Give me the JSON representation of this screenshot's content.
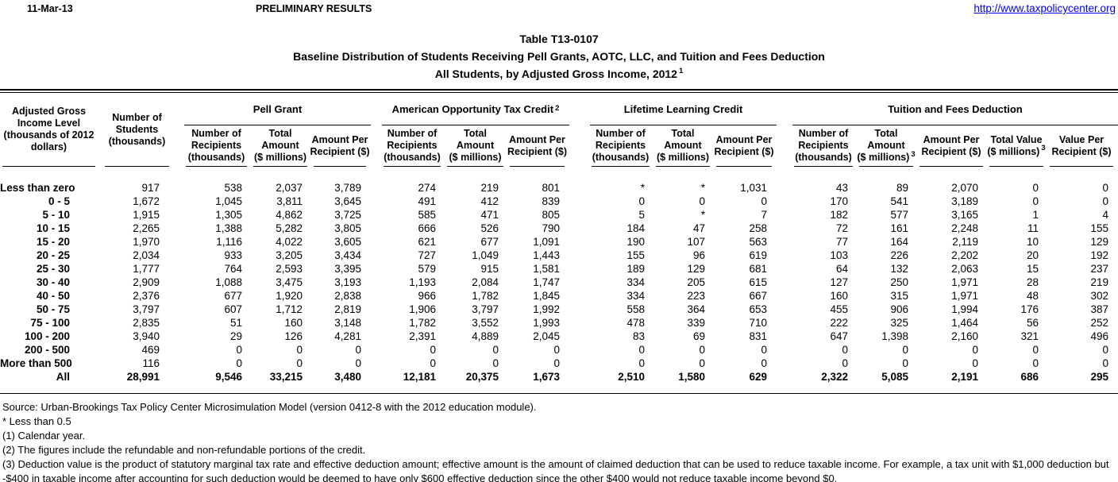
{
  "page": {
    "date": "11-Mar-13",
    "status": "PRELIMINARY RESULTS",
    "link": "http://www.taxpolicycenter.org"
  },
  "title": {
    "line1": "Table T13-0107",
    "line2": "Baseline Distribution of Students Receiving Pell Grants, AOTC, LLC, and Tuition and Fees Deduction",
    "line3": "All Students, by Adjusted Gross Income, 2012",
    "line3_sup": "1"
  },
  "table": {
    "row_header": {
      "lines": [
        "Adjusted Gross",
        "Income Level",
        "(thousands of 2012",
        "dollars)"
      ]
    },
    "students_header": {
      "lines": [
        "Number of",
        "Students",
        "(thousands)"
      ]
    },
    "groups": [
      {
        "label": "Pell Grant",
        "sup": "",
        "columns": [
          {
            "lines": [
              "Number of",
              "Recipients",
              "(thousands)"
            ],
            "sup": ""
          },
          {
            "lines": [
              "Total",
              "Amount",
              "($ millions)"
            ],
            "sup": ""
          },
          {
            "lines": [
              "Amount Per",
              "Recipient ($)"
            ],
            "sup": ""
          }
        ]
      },
      {
        "label": "American Opportunity Tax Credit",
        "sup": "2",
        "columns": [
          {
            "lines": [
              "Number of",
              "Recipients",
              "(thousands)"
            ],
            "sup": ""
          },
          {
            "lines": [
              "Total",
              "Amount",
              "($ millions)"
            ],
            "sup": ""
          },
          {
            "lines": [
              "Amount Per",
              "Recipient ($)"
            ],
            "sup": ""
          }
        ]
      },
      {
        "label": "Lifetime Learning Credit",
        "sup": "",
        "columns": [
          {
            "lines": [
              "Number of",
              "Recipients",
              "(thousands)"
            ],
            "sup": ""
          },
          {
            "lines": [
              "Total",
              "Amount",
              "($ millions)"
            ],
            "sup": ""
          },
          {
            "lines": [
              "Amount Per",
              "Recipient ($)"
            ],
            "sup": ""
          }
        ]
      },
      {
        "label": "Tuition and Fees Deduction",
        "sup": "",
        "columns": [
          {
            "lines": [
              "Number of",
              "Recipients",
              "(thousands)"
            ],
            "sup": ""
          },
          {
            "lines": [
              "Total",
              "Amount",
              "($ millions)"
            ],
            "sup": "3"
          },
          {
            "lines": [
              "Amount Per",
              "Recipient ($)"
            ],
            "sup": ""
          },
          {
            "lines": [
              "Total Value",
              "($ millions)"
            ],
            "sup": "3"
          },
          {
            "lines": [
              "Value Per",
              "Recipient ($)"
            ],
            "sup": ""
          }
        ]
      }
    ],
    "column_keys": [
      "students",
      "pell-recipients",
      "pell-total",
      "pell-per-recipient",
      "aotc-recipients",
      "aotc-total",
      "aotc-per-recipient",
      "llc-recipients",
      "llc-total",
      "llc-per-recipient",
      "tfd-recipients",
      "tfd-total",
      "tfd-per-recipient",
      "tfd-total-value",
      "tfd-value-per-recipient"
    ],
    "rows": [
      {
        "label": "Less than zero",
        "bold": false,
        "values": [
          "917",
          "538",
          "2,037",
          "3,789",
          "274",
          "219",
          "801",
          "*",
          "*",
          "1,031",
          "43",
          "89",
          "2,070",
          "0",
          "0"
        ]
      },
      {
        "label": "0 - 5",
        "bold": false,
        "values": [
          "1,672",
          "1,045",
          "3,811",
          "3,645",
          "491",
          "412",
          "839",
          "0",
          "0",
          "0",
          "170",
          "541",
          "3,189",
          "0",
          "0"
        ]
      },
      {
        "label": "5 - 10",
        "bold": false,
        "values": [
          "1,915",
          "1,305",
          "4,862",
          "3,725",
          "585",
          "471",
          "805",
          "5",
          "*",
          "7",
          "182",
          "577",
          "3,165",
          "1",
          "4"
        ]
      },
      {
        "label": "10 - 15",
        "bold": false,
        "values": [
          "2,265",
          "1,388",
          "5,282",
          "3,805",
          "666",
          "526",
          "790",
          "184",
          "47",
          "258",
          "72",
          "161",
          "2,248",
          "11",
          "155"
        ]
      },
      {
        "label": "15 - 20",
        "bold": false,
        "values": [
          "1,970",
          "1,116",
          "4,022",
          "3,605",
          "621",
          "677",
          "1,091",
          "190",
          "107",
          "563",
          "77",
          "164",
          "2,119",
          "10",
          "129"
        ]
      },
      {
        "label": "20 - 25",
        "bold": false,
        "values": [
          "2,034",
          "933",
          "3,205",
          "3,434",
          "727",
          "1,049",
          "1,443",
          "155",
          "96",
          "619",
          "103",
          "226",
          "2,202",
          "20",
          "192"
        ]
      },
      {
        "label": "25 - 30",
        "bold": false,
        "values": [
          "1,777",
          "764",
          "2,593",
          "3,395",
          "579",
          "915",
          "1,581",
          "189",
          "129",
          "681",
          "64",
          "132",
          "2,063",
          "15",
          "237"
        ]
      },
      {
        "label": "30 - 40",
        "bold": false,
        "values": [
          "2,909",
          "1,088",
          "3,475",
          "3,193",
          "1,193",
          "2,084",
          "1,747",
          "334",
          "205",
          "615",
          "127",
          "250",
          "1,971",
          "28",
          "219"
        ]
      },
      {
        "label": "40 - 50",
        "bold": false,
        "values": [
          "2,376",
          "677",
          "1,920",
          "2,838",
          "966",
          "1,782",
          "1,845",
          "334",
          "223",
          "667",
          "160",
          "315",
          "1,971",
          "48",
          "302"
        ]
      },
      {
        "label": "50 - 75",
        "bold": false,
        "values": [
          "3,797",
          "607",
          "1,712",
          "2,819",
          "1,906",
          "3,797",
          "1,992",
          "558",
          "364",
          "653",
          "455",
          "906",
          "1,994",
          "176",
          "387"
        ]
      },
      {
        "label": "75 - 100",
        "bold": false,
        "values": [
          "2,835",
          "51",
          "160",
          "3,148",
          "1,782",
          "3,552",
          "1,993",
          "478",
          "339",
          "710",
          "222",
          "325",
          "1,464",
          "56",
          "252"
        ]
      },
      {
        "label": "100 - 200",
        "bold": false,
        "values": [
          "3,940",
          "29",
          "126",
          "4,281",
          "2,391",
          "4,889",
          "2,045",
          "83",
          "69",
          "831",
          "647",
          "1,398",
          "2,160",
          "321",
          "496"
        ]
      },
      {
        "label": "200 - 500",
        "bold": false,
        "values": [
          "469",
          "0",
          "0",
          "0",
          "0",
          "0",
          "0",
          "0",
          "0",
          "0",
          "0",
          "0",
          "0",
          "0",
          "0"
        ]
      },
      {
        "label": "More than 500",
        "bold": false,
        "values": [
          "116",
          "0",
          "0",
          "0",
          "0",
          "0",
          "0",
          "0",
          "0",
          "0",
          "0",
          "0",
          "0",
          "0",
          "0"
        ]
      },
      {
        "label": "All",
        "bold": true,
        "values": [
          "28,991",
          "9,546",
          "33,215",
          "3,480",
          "12,181",
          "20,375",
          "1,673",
          "2,510",
          "1,580",
          "629",
          "2,322",
          "5,085",
          "2,191",
          "686",
          "295"
        ]
      }
    ]
  },
  "footnotes": [
    "Source: Urban-Brookings Tax Policy Center Microsimulation Model (version 0412-8 with the 2012 education module).",
    "* Less than 0.5",
    "(1) Calendar year.",
    "(2) The figures include the refundable and non-refundable portions of the credit.",
    "(3) Deduction value is the product of statutory marginal tax rate and effective deduction amount; effective amount is the amount of claimed deduction that can be used to reduce taxable income.  For example, a tax unit with $1,000 deduction but -$400 in taxable income after accounting for such deduction would be deemed to have only $600 effective deduction since the other $400 would not reduce taxable income beyond $0."
  ]
}
